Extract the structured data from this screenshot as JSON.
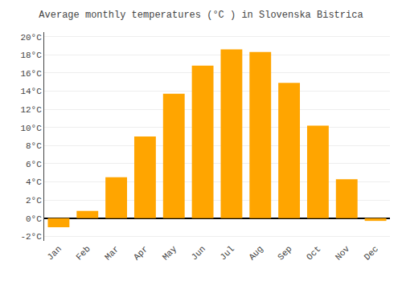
{
  "chart_data": {
    "type": "bar",
    "title": "Average monthly temperatures (°C ) in Slovenska Bistrica",
    "categories": [
      "Jan",
      "Feb",
      "Mar",
      "Apr",
      "May",
      "Jun",
      "Jul",
      "Aug",
      "Sep",
      "Oct",
      "Nov",
      "Dec"
    ],
    "values": [
      -1.0,
      0.8,
      4.5,
      9.0,
      13.7,
      16.8,
      18.6,
      18.3,
      14.9,
      10.2,
      4.3,
      -0.3
    ],
    "color": "#FFA500",
    "ylim": [
      -2.5,
      20.5
    ],
    "yticks": [
      {
        "value": -2,
        "label": "-2°C"
      },
      {
        "value": 0,
        "label": "0°C"
      },
      {
        "value": 2,
        "label": "2°C"
      },
      {
        "value": 4,
        "label": "4°C"
      },
      {
        "value": 6,
        "label": "6°C"
      },
      {
        "value": 8,
        "label": "8°C"
      },
      {
        "value": 10,
        "label": "10°C"
      },
      {
        "value": 12,
        "label": "12°C"
      },
      {
        "value": 14,
        "label": "14°C"
      },
      {
        "value": 16,
        "label": "16°C"
      },
      {
        "value": 18,
        "label": "18°C"
      },
      {
        "value": 20,
        "label": "20°C"
      }
    ],
    "grid": true
  }
}
